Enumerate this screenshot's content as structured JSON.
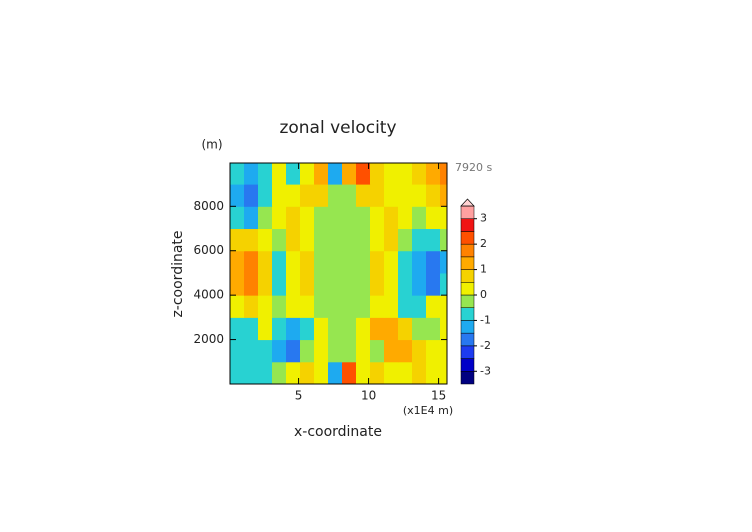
{
  "chart_data": {
    "type": "contour",
    "title": "zonal velocity",
    "y_unit": "(m)",
    "time_label": "7920 s",
    "x_label": "x-coordinate",
    "y_label": "z-coordinate",
    "x_unit": "(x1E4 m)",
    "xlim": [
      0.1,
      15.6
    ],
    "ylim": [
      0,
      9950
    ],
    "xticks": [
      5,
      10,
      15
    ],
    "yticks": [
      2000,
      4000,
      6000,
      8000
    ],
    "x": [
      0.6,
      1.6,
      2.6,
      3.6,
      4.6,
      5.6,
      6.6,
      7.6,
      8.6,
      9.6,
      10.6,
      11.6,
      12.6,
      13.6,
      14.6,
      15.6
    ],
    "z": [
      500,
      1500,
      2500,
      3500,
      4500,
      5500,
      6500,
      7500,
      8500,
      9500
    ],
    "values": [
      [
        -0.8,
        -0.8,
        -0.6,
        -0.3,
        0.3,
        0.6,
        0.3,
        -1.5,
        2,
        0.3,
        0.6,
        0.3,
        0.3,
        0.6,
        0.3,
        0.3
      ],
      [
        -0.8,
        -0.8,
        -0.6,
        -1.2,
        -1.6,
        -0.3,
        0.3,
        -0.3,
        -0.3,
        0.3,
        -0.3,
        1.2,
        1.3,
        0.6,
        0.3,
        0.3
      ],
      [
        -0.6,
        -0.6,
        0.3,
        -0.8,
        -1.2,
        -0.8,
        0.3,
        -0.3,
        -0.3,
        0.3,
        1.3,
        1.2,
        0.6,
        -0.3,
        -0.3,
        0.3
      ],
      [
        0.3,
        0.6,
        0.3,
        -0.3,
        0.3,
        0.3,
        -0.3,
        -0.3,
        -0.3,
        -0.3,
        0.3,
        0.3,
        -0.8,
        -0.8,
        0.3,
        0.3
      ],
      [
        1.3,
        1.6,
        0.6,
        -0.6,
        0.3,
        0.6,
        -0.3,
        -0.3,
        -0.3,
        -0.3,
        0.6,
        0.3,
        -0.8,
        -1.3,
        -1.6,
        -0.8
      ],
      [
        1.3,
        1.8,
        0.8,
        -0.6,
        0.3,
        0.8,
        -0.3,
        -0.3,
        -0.3,
        -0.3,
        0.8,
        0.3,
        -0.8,
        -1.3,
        -1.8,
        -1.3
      ],
      [
        0.8,
        0.6,
        0.3,
        -0.3,
        0.6,
        0.3,
        -0.3,
        -0.3,
        -0.3,
        -0.3,
        0.3,
        0.6,
        -0.3,
        -0.8,
        -0.8,
        -0.3
      ],
      [
        -0.8,
        -1.3,
        -0.3,
        0.3,
        0.6,
        0.3,
        -0.3,
        -0.3,
        -0.3,
        -0.3,
        0.3,
        0.6,
        0.3,
        -0.3,
        0.3,
        0.3
      ],
      [
        -1.3,
        -1.6,
        -0.8,
        0.3,
        0.3,
        0.6,
        0.8,
        -0.3,
        -0.3,
        0.8,
        0.6,
        0.3,
        0.3,
        0.3,
        0.8,
        1.2
      ],
      [
        -0.8,
        -1.3,
        -0.8,
        0.3,
        -0.8,
        0.3,
        1.2,
        -1.2,
        1.3,
        2.3,
        0.6,
        0.3,
        0.3,
        0.6,
        1.3,
        1.6
      ]
    ],
    "levels": [
      -3.5,
      -3,
      -2.5,
      -2,
      -1.5,
      -1,
      -0.5,
      0,
      0.5,
      1,
      1.5,
      2,
      2.5,
      3,
      3.5
    ],
    "colors": [
      "#000080",
      "#0000c8",
      "#1e3cf0",
      "#2878f0",
      "#1eaaf0",
      "#28d2d2",
      "#96e650",
      "#f0f000",
      "#f5d200",
      "#ffaa00",
      "#ff8200",
      "#ff5000",
      "#f01414",
      "#ffa0a0"
    ],
    "extend_color": "#ffd2d2",
    "cbar_ticks": [
      -3,
      -2,
      -1,
      0,
      1,
      2,
      3
    ]
  }
}
